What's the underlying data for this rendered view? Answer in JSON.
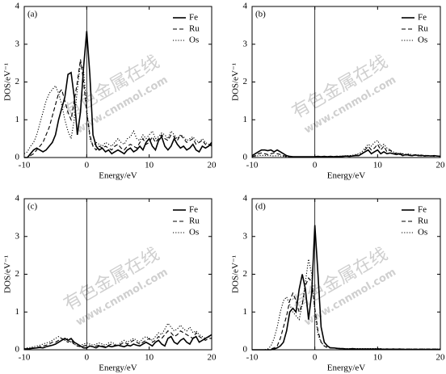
{
  "watermark": {
    "text": "有色金属在线",
    "url": "www.cnnmol.com"
  },
  "chart_data": [
    {
      "type": "line",
      "label": "(a)",
      "xlabel": "Energy/eV",
      "ylabel": "DOS/eV⁻¹",
      "xlim": [
        -10,
        20
      ],
      "xticks": [
        -10,
        0,
        10,
        20
      ],
      "ylim": [
        0,
        4
      ],
      "yticks": [
        0,
        1,
        2,
        3,
        4
      ],
      "vline": 0,
      "legend": "upper right",
      "x": [
        -10,
        -9.5,
        -9,
        -8.5,
        -8,
        -7.5,
        -7,
        -6.5,
        -6,
        -5.5,
        -5,
        -4.5,
        -4,
        -3.5,
        -3,
        -2.5,
        -2,
        -1.5,
        -1,
        -0.5,
        0,
        0.5,
        1,
        1.5,
        2,
        2.5,
        3,
        3.5,
        4,
        4.5,
        5,
        5.5,
        6,
        6.5,
        7,
        7.5,
        8,
        8.5,
        9,
        9.5,
        10,
        10.5,
        11,
        11.5,
        12,
        12.5,
        13,
        13.5,
        14,
        14.5,
        15,
        15.5,
        16,
        16.5,
        17,
        17.5,
        18,
        18.5,
        19,
        19.5,
        20
      ],
      "series": [
        {
          "name": "Fe",
          "color": "#000000",
          "style": "solid",
          "values": [
            0,
            0,
            0.1,
            0.2,
            0.25,
            0.2,
            0.15,
            0.2,
            0.3,
            0.4,
            0.6,
            1.0,
            1.3,
            1.6,
            2.2,
            2.25,
            1.6,
            0.6,
            1.2,
            2.4,
            3.35,
            2.2,
            0.6,
            0.3,
            0.2,
            0.25,
            0.15,
            0.2,
            0.1,
            0.15,
            0.2,
            0.15,
            0.1,
            0.2,
            0.25,
            0.15,
            0.2,
            0.3,
            0.2,
            0.4,
            0.5,
            0.3,
            0.2,
            0.45,
            0.55,
            0.3,
            0.2,
            0.3,
            0.5,
            0.35,
            0.25,
            0.3,
            0.2,
            0.25,
            0.35,
            0.2,
            0.15,
            0.3,
            0.25,
            0.3,
            0.4
          ]
        },
        {
          "name": "Ru",
          "color": "#000000",
          "style": "dashed",
          "values": [
            0,
            0,
            0.05,
            0.1,
            0.2,
            0.3,
            0.4,
            0.6,
            0.8,
            1.1,
            1.4,
            1.7,
            1.8,
            1.5,
            1.2,
            1.0,
            1.5,
            2.0,
            2.6,
            2.0,
            1.2,
            0.6,
            0.3,
            0.2,
            0.3,
            0.25,
            0.3,
            0.25,
            0.2,
            0.3,
            0.35,
            0.25,
            0.2,
            0.3,
            0.35,
            0.3,
            0.25,
            0.4,
            0.5,
            0.35,
            0.4,
            0.55,
            0.4,
            0.5,
            0.6,
            0.5,
            0.45,
            0.6,
            0.55,
            0.45,
            0.6,
            0.5,
            0.4,
            0.45,
            0.5,
            0.35,
            0.4,
            0.45,
            0.35,
            0.3,
            0.35
          ]
        },
        {
          "name": "Os",
          "color": "#000000",
          "style": "dotted",
          "values": [
            0.1,
            0.15,
            0.3,
            0.4,
            0.6,
            0.9,
            1.2,
            1.5,
            1.7,
            1.8,
            1.9,
            1.7,
            1.4,
            1.0,
            0.7,
            0.5,
            1.0,
            1.8,
            2.5,
            2.3,
            1.3,
            0.5,
            0.3,
            0.4,
            0.35,
            0.3,
            0.4,
            0.35,
            0.3,
            0.4,
            0.5,
            0.4,
            0.35,
            0.5,
            0.55,
            0.7,
            0.5,
            0.45,
            0.6,
            0.5,
            0.6,
            0.7,
            0.5,
            0.55,
            0.65,
            0.6,
            0.5,
            0.7,
            0.6,
            0.5,
            0.6,
            0.55,
            0.45,
            0.5,
            0.55,
            0.45,
            0.4,
            0.5,
            0.4,
            0.35,
            0.3
          ]
        }
      ]
    },
    {
      "type": "line",
      "label": "(b)",
      "xlabel": "Energy/eV",
      "ylabel": "DOS/eV⁻¹",
      "xlim": [
        -10,
        20
      ],
      "xticks": [
        -10,
        0,
        10,
        20
      ],
      "ylim": [
        0,
        4
      ],
      "yticks": [
        0,
        1,
        2,
        3,
        4
      ],
      "vline": 0,
      "legend": "upper right",
      "x": [
        -10,
        -9.5,
        -9,
        -8.5,
        -8,
        -7.5,
        -7,
        -6.5,
        -6,
        -5.5,
        -5,
        -4.5,
        -4,
        -3.5,
        -3,
        -2.5,
        -2,
        -1.5,
        -1,
        -0.5,
        0,
        0.5,
        1,
        1.5,
        2,
        2.5,
        3,
        3.5,
        4,
        4.5,
        5,
        5.5,
        6,
        6.5,
        7,
        7.5,
        8,
        8.5,
        9,
        9.5,
        10,
        10.5,
        11,
        11.5,
        12,
        12.5,
        13,
        13.5,
        14,
        14.5,
        15,
        15.5,
        16,
        16.5,
        17,
        17.5,
        18,
        18.5,
        19,
        19.5,
        20
      ],
      "series": [
        {
          "name": "Fe",
          "color": "#000000",
          "style": "solid",
          "values": [
            0.05,
            0.1,
            0.15,
            0.2,
            0.2,
            0.18,
            0.2,
            0.15,
            0.2,
            0.15,
            0.1,
            0.05,
            0.03,
            0.02,
            0.02,
            0.02,
            0.02,
            0.02,
            0.02,
            0.02,
            0.02,
            0.03,
            0.02,
            0.03,
            0.02,
            0.03,
            0.02,
            0.03,
            0.02,
            0.03,
            0.04,
            0.03,
            0.04,
            0.05,
            0.05,
            0.1,
            0.15,
            0.2,
            0.1,
            0.15,
            0.2,
            0.1,
            0.15,
            0.1,
            0.12,
            0.1,
            0.08,
            0.1,
            0.05,
            0.08,
            0.06,
            0.05,
            0.07,
            0.05,
            0.06,
            0.04,
            0.05,
            0.04,
            0.05,
            0.04,
            0.03
          ]
        },
        {
          "name": "Ru",
          "color": "#000000",
          "style": "dashed",
          "values": [
            0.02,
            0.05,
            0.1,
            0.12,
            0.1,
            0.08,
            0.1,
            0.12,
            0.1,
            0.08,
            0.05,
            0.03,
            0.02,
            0.02,
            0.02,
            0.02,
            0.02,
            0.02,
            0.02,
            0.02,
            0.02,
            0.02,
            0.03,
            0.02,
            0.03,
            0.02,
            0.03,
            0.02,
            0.03,
            0.04,
            0.03,
            0.04,
            0.05,
            0.06,
            0.08,
            0.1,
            0.2,
            0.3,
            0.2,
            0.25,
            0.35,
            0.2,
            0.3,
            0.15,
            0.2,
            0.1,
            0.12,
            0.08,
            0.1,
            0.06,
            0.08,
            0.05,
            0.06,
            0.05,
            0.04,
            0.05,
            0.04,
            0.05,
            0.03,
            0.04,
            0.03
          ]
        },
        {
          "name": "Os",
          "color": "#000000",
          "style": "dotted",
          "values": [
            0.02,
            0.03,
            0.05,
            0.06,
            0.05,
            0.06,
            0.05,
            0.04,
            0.05,
            0.04,
            0.03,
            0.02,
            0.02,
            0.02,
            0.02,
            0.02,
            0.02,
            0.02,
            0.02,
            0.02,
            0.02,
            0.02,
            0.02,
            0.03,
            0.02,
            0.03,
            0.03,
            0.03,
            0.04,
            0.04,
            0.05,
            0.05,
            0.06,
            0.08,
            0.1,
            0.15,
            0.25,
            0.35,
            0.3,
            0.4,
            0.45,
            0.3,
            0.35,
            0.25,
            0.2,
            0.15,
            0.1,
            0.12,
            0.1,
            0.08,
            0.1,
            0.07,
            0.06,
            0.07,
            0.05,
            0.06,
            0.05,
            0.04,
            0.05,
            0.04,
            0.03
          ]
        }
      ]
    },
    {
      "type": "line",
      "label": "(c)",
      "xlabel": "Energy/eV",
      "ylabel": "DOS/eV⁻¹",
      "xlim": [
        -10,
        20
      ],
      "xticks": [
        -10,
        0,
        10,
        20
      ],
      "ylim": [
        0,
        4
      ],
      "yticks": [
        0,
        1,
        2,
        3,
        4
      ],
      "vline": 0,
      "legend": "upper right",
      "x": [
        -10,
        -9.5,
        -9,
        -8.5,
        -8,
        -7.5,
        -7,
        -6.5,
        -6,
        -5.5,
        -5,
        -4.5,
        -4,
        -3.5,
        -3,
        -2.5,
        -2,
        -1.5,
        -1,
        -0.5,
        0,
        0.5,
        1,
        1.5,
        2,
        2.5,
        3,
        3.5,
        4,
        4.5,
        5,
        5.5,
        6,
        6.5,
        7,
        7.5,
        8,
        8.5,
        9,
        9.5,
        10,
        10.5,
        11,
        11.5,
        12,
        12.5,
        13,
        13.5,
        14,
        14.5,
        15,
        15.5,
        16,
        16.5,
        17,
        17.5,
        18,
        18.5,
        19,
        19.5,
        20
      ],
      "series": [
        {
          "name": "Fe",
          "color": "#000000",
          "style": "solid",
          "values": [
            0.02,
            0.02,
            0.03,
            0.04,
            0.05,
            0.06,
            0.05,
            0.08,
            0.1,
            0.12,
            0.15,
            0.2,
            0.25,
            0.3,
            0.25,
            0.3,
            0.2,
            0.15,
            0.1,
            0.05,
            0.05,
            0.1,
            0.08,
            0.05,
            0.1,
            0.08,
            0.06,
            0.1,
            0.08,
            0.1,
            0.12,
            0.1,
            0.08,
            0.12,
            0.1,
            0.15,
            0.12,
            0.1,
            0.15,
            0.2,
            0.15,
            0.1,
            0.2,
            0.25,
            0.15,
            0.1,
            0.3,
            0.35,
            0.2,
            0.15,
            0.25,
            0.3,
            0.2,
            0.15,
            0.3,
            0.35,
            0.2,
            0.25,
            0.3,
            0.35,
            0.4
          ]
        },
        {
          "name": "Ru",
          "color": "#000000",
          "style": "dashed",
          "values": [
            0.02,
            0.03,
            0.04,
            0.05,
            0.06,
            0.08,
            0.1,
            0.12,
            0.15,
            0.2,
            0.2,
            0.25,
            0.3,
            0.25,
            0.2,
            0.25,
            0.15,
            0.1,
            0.08,
            0.1,
            0.12,
            0.1,
            0.08,
            0.1,
            0.12,
            0.1,
            0.08,
            0.12,
            0.15,
            0.12,
            0.1,
            0.15,
            0.2,
            0.15,
            0.2,
            0.25,
            0.2,
            0.15,
            0.2,
            0.25,
            0.3,
            0.2,
            0.25,
            0.35,
            0.3,
            0.4,
            0.5,
            0.45,
            0.35,
            0.4,
            0.5,
            0.45,
            0.4,
            0.35,
            0.3,
            0.45,
            0.35,
            0.3,
            0.25,
            0.3,
            0.3
          ]
        },
        {
          "name": "Os",
          "color": "#000000",
          "style": "dotted",
          "values": [
            0.03,
            0.05,
            0.06,
            0.08,
            0.1,
            0.12,
            0.15,
            0.18,
            0.2,
            0.25,
            0.3,
            0.35,
            0.3,
            0.25,
            0.3,
            0.2,
            0.15,
            0.1,
            0.12,
            0.15,
            0.18,
            0.15,
            0.12,
            0.15,
            0.18,
            0.15,
            0.12,
            0.18,
            0.2,
            0.15,
            0.12,
            0.2,
            0.25,
            0.2,
            0.25,
            0.3,
            0.25,
            0.2,
            0.3,
            0.35,
            0.3,
            0.25,
            0.35,
            0.45,
            0.4,
            0.55,
            0.7,
            0.6,
            0.5,
            0.55,
            0.65,
            0.55,
            0.5,
            0.6,
            0.45,
            0.5,
            0.4,
            0.35,
            0.3,
            0.35,
            0.3
          ]
        }
      ]
    },
    {
      "type": "line",
      "label": "(d)",
      "xlabel": "Energy/eV",
      "ylabel": "DOS/eV⁻¹",
      "xlim": [
        -10,
        20
      ],
      "xticks": [
        -10,
        0,
        10,
        20
      ],
      "ylim": [
        0,
        4
      ],
      "yticks": [
        0,
        1,
        2,
        3,
        4
      ],
      "vline": 0,
      "legend": "upper right",
      "x": [
        -10,
        -9.5,
        -9,
        -8.5,
        -8,
        -7.5,
        -7,
        -6.5,
        -6,
        -5.5,
        -5,
        -4.5,
        -4,
        -3.5,
        -3,
        -2.5,
        -2,
        -1.5,
        -1,
        -0.5,
        0,
        0.5,
        1,
        1.5,
        2,
        2.5,
        3,
        3.5,
        4,
        4.5,
        5,
        5.5,
        6,
        6.5,
        7,
        7.5,
        8,
        8.5,
        9,
        9.5,
        10,
        10.5,
        11,
        11.5,
        12,
        12.5,
        13,
        13.5,
        14,
        14.5,
        15,
        15.5,
        16,
        16.5,
        17,
        17.5,
        18,
        18.5,
        19,
        19.5,
        20
      ],
      "series": [
        {
          "name": "Fe",
          "color": "#000000",
          "style": "solid",
          "values": [
            0,
            0,
            0,
            0,
            0,
            0,
            0,
            0.02,
            0.05,
            0.1,
            0.2,
            0.5,
            1.0,
            1.1,
            1.0,
            1.6,
            2.0,
            1.6,
            0.8,
            1.5,
            3.3,
            2.0,
            0.6,
            0.2,
            0.1,
            0.05,
            0.05,
            0.04,
            0.03,
            0.03,
            0.02,
            0.02,
            0.03,
            0.02,
            0.02,
            0.02,
            0.02,
            0.02,
            0.02,
            0.02,
            0.02,
            0.02,
            0.01,
            0.02,
            0.01,
            0.02,
            0.01,
            0.02,
            0.01,
            0.01,
            0.01,
            0.01,
            0.01,
            0.01,
            0.01,
            0.01,
            0.01,
            0.01,
            0.01,
            0.01,
            0.01
          ]
        },
        {
          "name": "Ru",
          "color": "#000000",
          "style": "dashed",
          "values": [
            0,
            0,
            0,
            0,
            0,
            0,
            0.02,
            0.05,
            0.1,
            0.3,
            0.6,
            0.9,
            1.3,
            1.5,
            1.3,
            1.0,
            1.2,
            1.7,
            1.9,
            1.8,
            1.1,
            0.5,
            0.2,
            0.1,
            0.05,
            0.05,
            0.04,
            0.03,
            0.03,
            0.03,
            0.02,
            0.02,
            0.02,
            0.02,
            0.02,
            0.02,
            0.02,
            0.02,
            0.02,
            0.02,
            0.02,
            0.02,
            0.02,
            0.02,
            0.02,
            0.02,
            0.02,
            0.02,
            0.02,
            0.02,
            0.02,
            0.02,
            0.02,
            0.02,
            0.02,
            0.02,
            0.02,
            0.02,
            0.02,
            0.02,
            0.02
          ]
        },
        {
          "name": "Os",
          "color": "#000000",
          "style": "dotted",
          "values": [
            0,
            0,
            0,
            0,
            0,
            0.02,
            0.1,
            0.3,
            0.6,
            1.0,
            1.3,
            1.4,
            1.2,
            1.0,
            0.9,
            0.8,
            1.2,
            1.8,
            2.4,
            2.0,
            1.0,
            0.4,
            0.2,
            0.1,
            0.08,
            0.06,
            0.05,
            0.04,
            0.04,
            0.03,
            0.03,
            0.03,
            0.03,
            0.03,
            0.03,
            0.03,
            0.03,
            0.03,
            0.03,
            0.03,
            0.03,
            0.03,
            0.02,
            0.02,
            0.02,
            0.02,
            0.02,
            0.02,
            0.02,
            0.02,
            0.02,
            0.02,
            0.02,
            0.02,
            0.02,
            0.02,
            0.02,
            0.02,
            0.02,
            0.02,
            0.02
          ]
        }
      ]
    }
  ]
}
